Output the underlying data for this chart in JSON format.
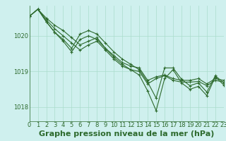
{
  "background_color": "#cff0ee",
  "grid_color": "#aaddcc",
  "line_color": "#2d6a2d",
  "marker_color": "#2d6a2d",
  "title": "Graphe pression niveau de la mer (hPa)",
  "xlim": [
    0,
    23
  ],
  "ylim": [
    1017.6,
    1020.85
  ],
  "yticks": [
    1018,
    1019,
    1020
  ],
  "xticks": [
    0,
    1,
    2,
    3,
    4,
    5,
    6,
    7,
    8,
    9,
    10,
    11,
    12,
    13,
    14,
    15,
    16,
    17,
    18,
    19,
    20,
    21,
    22,
    23
  ],
  "series": [
    [
      1020.55,
      1020.75,
      1020.5,
      1020.3,
      1020.15,
      1019.95,
      1019.75,
      1019.85,
      1019.95,
      1019.65,
      1019.45,
      1019.25,
      1019.15,
      1019.1,
      1018.75,
      1018.85,
      1018.9,
      1018.8,
      1018.75,
      1018.75,
      1018.8,
      1018.65,
      1018.8,
      1018.75
    ],
    [
      1020.55,
      1020.75,
      1020.45,
      1020.2,
      1020.0,
      1019.8,
      1019.6,
      1019.75,
      1019.85,
      1019.6,
      1019.35,
      1019.15,
      1019.05,
      1019.0,
      1018.65,
      1018.8,
      1018.88,
      1018.75,
      1018.7,
      1018.7,
      1018.72,
      1018.6,
      1018.75,
      1018.7
    ],
    [
      1020.55,
      1020.75,
      1020.4,
      1020.1,
      1019.9,
      1019.65,
      1020.05,
      1020.15,
      1020.05,
      1019.8,
      1019.55,
      1019.35,
      1019.2,
      1019.05,
      1018.7,
      1018.25,
      1019.1,
      1019.1,
      1018.78,
      1018.6,
      1018.68,
      1018.42,
      1018.88,
      1018.68
    ],
    [
      1020.55,
      1020.75,
      1020.4,
      1020.1,
      1019.85,
      1019.55,
      1019.9,
      1020.0,
      1019.9,
      1019.65,
      1019.4,
      1019.2,
      1019.05,
      1018.9,
      1018.45,
      1017.9,
      1018.8,
      1019.05,
      1018.68,
      1018.5,
      1018.58,
      1018.32,
      1018.85,
      1018.62
    ]
  ],
  "title_fontsize": 8,
  "tick_fontsize": 6,
  "title_color": "#2d6a2d",
  "tick_color": "#2d6a2d"
}
